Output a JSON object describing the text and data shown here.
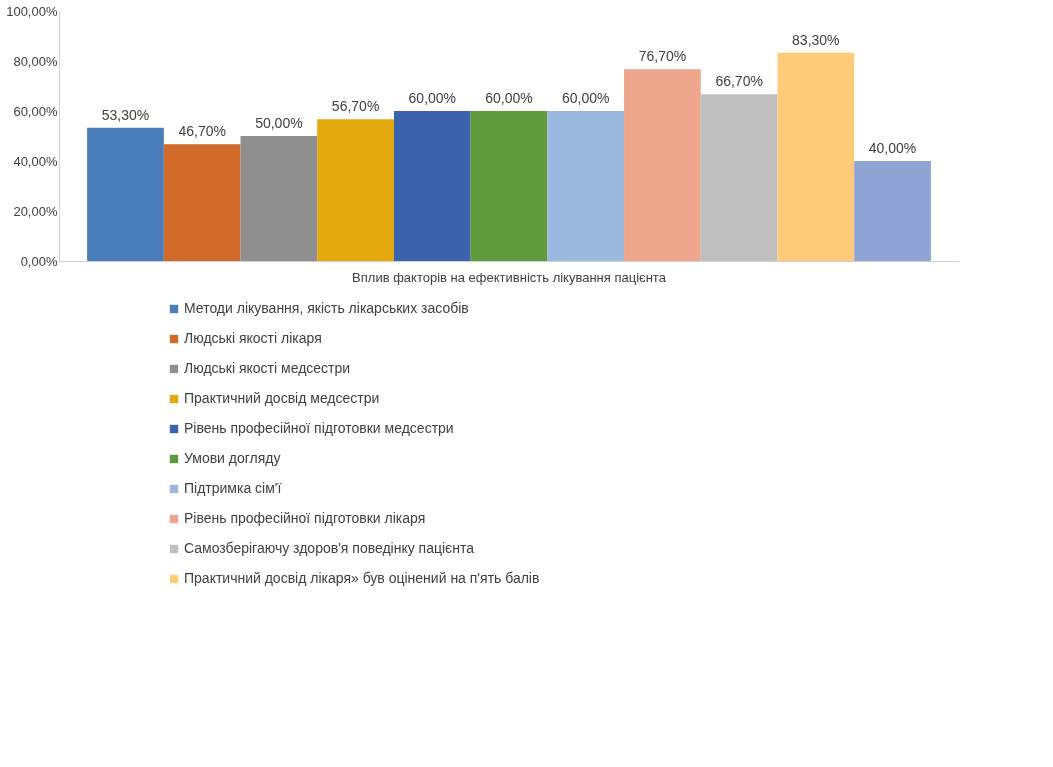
{
  "chart_data": {
    "type": "bar",
    "categories": [
      "Вплив факторів на ефективність лікування пацієнта"
    ],
    "ylim": [
      0,
      100
    ],
    "yticks": [
      {
        "value": 0,
        "label": "0,00%"
      },
      {
        "value": 20,
        "label": "20,00%"
      },
      {
        "value": 40,
        "label": "40,00%"
      },
      {
        "value": 60,
        "label": "60,00%"
      },
      {
        "value": 80,
        "label": "80,00%"
      },
      {
        "value": 100,
        "label": "100,00%"
      }
    ],
    "grid": false,
    "legend": "bottom",
    "series": [
      {
        "name": "Методи лікування, якість лікарських засобів",
        "color": "#4a7ebb",
        "values": [
          53.3
        ],
        "value_labels": [
          "53,30%"
        ]
      },
      {
        "name": "Людські якості лікаря",
        "color": "#d26b2a",
        "values": [
          46.7
        ],
        "value_labels": [
          "46,70%"
        ]
      },
      {
        "name": "Людські якості медсестри",
        "color": "#8f8f8f",
        "values": [
          50.0
        ],
        "value_labels": [
          "50,00%"
        ]
      },
      {
        "name": "Практичний досвід медсестри",
        "color": "#e3a90d",
        "values": [
          56.7
        ],
        "value_labels": [
          "56,70%"
        ]
      },
      {
        "name": "Рівень професійної підготовки медсестри",
        "color": "#3a62ad",
        "values": [
          60.0
        ],
        "value_labels": [
          "60,00%"
        ]
      },
      {
        "name": "Умови догляду",
        "color": "#5f9a3d",
        "values": [
          60.0
        ],
        "value_labels": [
          "60,00%"
        ]
      },
      {
        "name": "Підтримка сім'ї",
        "color": "#9ab8de",
        "values": [
          60.0
        ],
        "value_labels": [
          "60,00%"
        ]
      },
      {
        "name": "Рівень професійної підготовки лікаря",
        "color": "#eda58b",
        "values": [
          76.7
        ],
        "value_labels": [
          "76,70%"
        ]
      },
      {
        "name": "Самозберігаючу здоров'я поведінку пацієнта",
        "color": "#bfbfbf",
        "values": [
          66.7
        ],
        "value_labels": [
          "66,70%"
        ]
      },
      {
        "name": "Практичний досвід лікаря» був оцінений на п'ять балів",
        "color": "#fdcb7a",
        "values": [
          83.3
        ],
        "value_labels": [
          "83,30%"
        ]
      },
      {
        "color": "#8fa3d4",
        "values": [
          40.0
        ],
        "value_labels": [
          "40,00%"
        ]
      }
    ]
  }
}
